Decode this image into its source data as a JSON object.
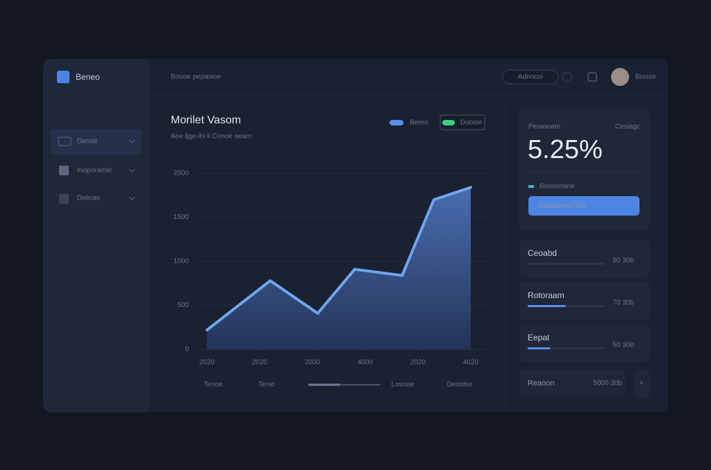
{
  "sidebar": {
    "brand": "Beneo",
    "items": [
      "Denoit",
      "Inoporamie",
      "Delicae"
    ]
  },
  "header": {
    "title": "Bouoe pepasioe",
    "search": "Adnocoi",
    "user": "Biosse"
  },
  "chart_data": {
    "type": "line",
    "title": "Morilet Vasom",
    "subtitle": "Aoe ljge-ihi li Cenoe aeam",
    "xlim": [
      0,
      5
    ],
    "xticks": [
      {
        "value": 0,
        "label": "2020"
      },
      {
        "value": 1,
        "label": "2020"
      },
      {
        "value": 2,
        "label": "2000"
      },
      {
        "value": 3,
        "label": "4000"
      },
      {
        "value": 4,
        "label": "2020"
      },
      {
        "value": 5,
        "label": "4020"
      }
    ],
    "ylim": [
      0,
      2000
    ],
    "yticks": [
      0,
      500,
      1000,
      1500,
      2000
    ],
    "grid": true,
    "series": [
      {
        "name": "Bereo",
        "color": "#6fa6ee",
        "x": [
          0,
          1.2,
          2.1,
          2.8,
          3.7,
          4.3,
          5
        ],
        "values": [
          220,
          780,
          410,
          910,
          840,
          1700,
          1840
        ]
      }
    ],
    "legend_extra": "Dobise",
    "range_labels": [
      "Tenoe",
      "Tenio",
      "Losnoe",
      "Deoidse"
    ]
  },
  "stat": {
    "label": "Peraooam",
    "period": "Cesiagc",
    "value": "5.25%",
    "legend": "Beosenane",
    "button": "Goaosenc/Vin"
  },
  "cards": [
    {
      "name": "Ceoabd",
      "value": "50 30b"
    },
    {
      "name": "Rotoraam",
      "value": "70 30b"
    },
    {
      "name": "Eepat",
      "value": "50 30b"
    }
  ],
  "alert": {
    "name": "Reaoon",
    "value": "5000 30b"
  }
}
